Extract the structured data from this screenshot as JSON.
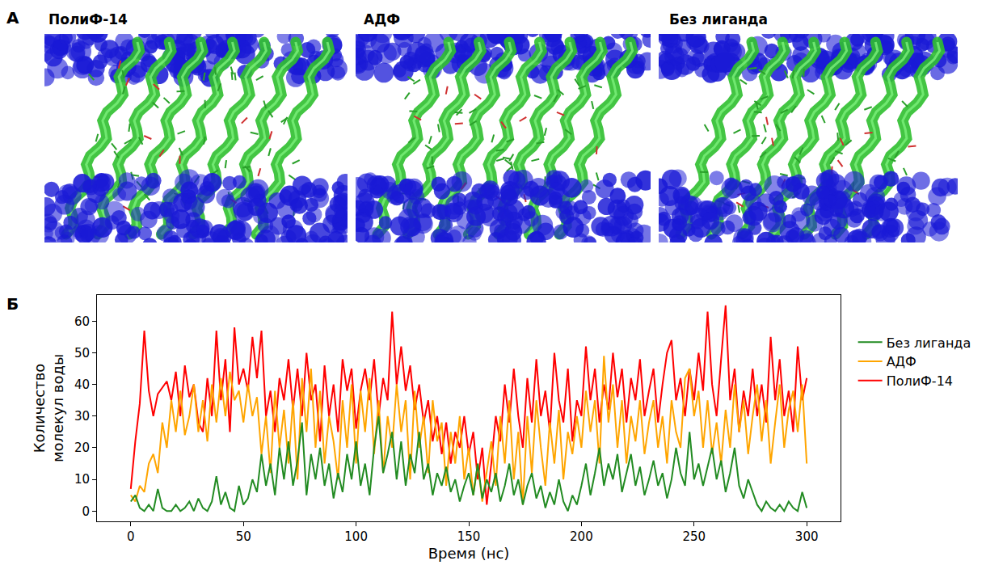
{
  "panel_a": {
    "label": "А",
    "images": [
      "ПолиФ-14",
      "АДФ",
      "Без лиганда"
    ]
  },
  "panel_b": {
    "label": "Б"
  },
  "chart_data": {
    "type": "line",
    "x_label": "Время (нс)",
    "y_label": "Количество молекул воды",
    "xlim": [
      -15,
      315
    ],
    "ylim": [
      -3.25,
      68.25
    ],
    "xticks": [
      0,
      50,
      100,
      150,
      200,
      250,
      300
    ],
    "yticks": [
      0,
      10,
      20,
      30,
      40,
      50,
      60
    ],
    "grid": false,
    "legend": "right",
    "x": [
      0,
      2,
      4,
      6,
      8,
      10,
      12,
      14,
      16,
      18,
      20,
      22,
      24,
      26,
      28,
      30,
      32,
      34,
      36,
      38,
      40,
      42,
      44,
      46,
      48,
      50,
      52,
      54,
      56,
      58,
      60,
      62,
      64,
      66,
      68,
      70,
      72,
      74,
      76,
      78,
      80,
      82,
      84,
      86,
      88,
      90,
      92,
      94,
      96,
      98,
      100,
      102,
      104,
      106,
      108,
      110,
      112,
      114,
      116,
      118,
      120,
      122,
      124,
      126,
      128,
      130,
      132,
      134,
      136,
      138,
      140,
      142,
      144,
      146,
      148,
      150,
      152,
      154,
      156,
      158,
      160,
      162,
      164,
      166,
      168,
      170,
      172,
      174,
      176,
      178,
      180,
      182,
      184,
      186,
      188,
      190,
      192,
      194,
      196,
      198,
      200,
      202,
      204,
      206,
      208,
      210,
      212,
      214,
      216,
      218,
      220,
      222,
      224,
      226,
      228,
      230,
      232,
      234,
      236,
      238,
      240,
      242,
      244,
      246,
      248,
      250,
      252,
      254,
      256,
      258,
      260,
      262,
      264,
      266,
      268,
      270,
      272,
      274,
      276,
      278,
      280,
      282,
      284,
      286,
      288,
      290,
      292,
      294,
      296,
      298,
      300
    ],
    "series": [
      {
        "name": "Без лиганда",
        "color": "#228B22",
        "values": [
          3,
          5,
          1,
          0,
          2,
          0,
          7,
          1,
          0,
          0,
          2,
          0,
          1,
          3,
          0,
          4,
          1,
          0,
          3,
          11,
          2,
          6,
          1,
          0,
          8,
          2,
          4,
          10,
          6,
          18,
          8,
          15,
          5,
          20,
          10,
          22,
          8,
          16,
          28,
          5,
          18,
          10,
          20,
          8,
          15,
          4,
          12,
          6,
          18,
          10,
          22,
          8,
          15,
          5,
          20,
          30,
          12,
          18,
          25,
          10,
          22,
          8,
          18,
          12,
          25,
          10,
          15,
          5,
          12,
          8,
          14,
          6,
          10,
          3,
          8,
          12,
          5,
          15,
          4,
          10,
          6,
          12,
          3,
          8,
          15,
          5,
          10,
          2,
          8,
          12,
          4,
          8,
          1,
          6,
          2,
          10,
          3,
          0,
          5,
          2,
          8,
          15,
          5,
          12,
          20,
          8,
          15,
          10,
          18,
          6,
          12,
          18,
          8,
          14,
          5,
          10,
          16,
          8,
          12,
          4,
          10,
          20,
          12,
          8,
          25,
          10,
          15,
          8,
          14,
          20,
          10,
          16,
          6,
          12,
          20,
          8,
          4,
          10,
          6,
          2,
          0,
          3,
          1,
          0,
          2,
          0,
          3,
          1,
          0,
          6,
          1
        ]
      },
      {
        "name": "АДФ",
        "color": "#FFA500",
        "values": [
          5,
          3,
          8,
          6,
          15,
          18,
          12,
          28,
          20,
          35,
          25,
          38,
          24,
          30,
          40,
          25,
          35,
          22,
          40,
          28,
          42,
          30,
          44,
          35,
          38,
          28,
          40,
          30,
          36,
          18,
          30,
          12,
          38,
          20,
          32,
          15,
          35,
          10,
          42,
          25,
          45,
          20,
          38,
          15,
          30,
          22,
          10,
          35,
          20,
          40,
          15,
          38,
          25,
          42,
          18,
          35,
          12,
          30,
          20,
          40,
          25,
          35,
          10,
          38,
          20,
          30,
          12,
          35,
          22,
          28,
          8,
          25,
          15,
          30,
          10,
          20,
          5,
          15,
          3,
          12,
          22,
          8,
          30,
          15,
          35,
          10,
          25,
          2,
          30,
          12,
          35,
          20,
          8,
          28,
          15,
          32,
          10,
          25,
          18,
          30,
          20,
          38,
          25,
          35,
          15,
          49,
          28,
          40,
          20,
          35,
          15,
          30,
          22,
          35,
          18,
          28,
          35,
          20,
          30,
          15,
          35,
          25,
          20,
          42,
          45,
          30,
          38,
          20,
          35,
          18,
          28,
          15,
          32,
          20,
          40,
          25,
          35,
          18,
          30,
          40,
          22,
          35,
          15,
          28,
          40,
          20,
          32,
          38,
          25,
          40,
          15
        ]
      },
      {
        "name": "ПолиФ-14",
        "color": "#FF0000",
        "values": [
          7,
          22,
          34,
          57,
          38,
          30,
          37,
          39,
          41,
          35,
          44,
          30,
          46,
          36,
          40,
          28,
          25,
          42,
          30,
          57,
          35,
          48,
          25,
          58,
          40,
          45,
          38,
          55,
          42,
          57,
          30,
          38,
          25,
          42,
          35,
          48,
          32,
          45,
          30,
          50,
          35,
          40,
          22,
          46,
          30,
          40,
          25,
          48,
          38,
          45,
          26,
          38,
          45,
          35,
          48,
          30,
          42,
          35,
          63,
          40,
          52,
          38,
          46,
          32,
          40,
          28,
          35,
          22,
          30,
          18,
          28,
          15,
          25,
          20,
          30,
          18,
          25,
          10,
          20,
          2,
          15,
          30,
          22,
          40,
          28,
          45,
          30,
          20,
          42,
          28,
          48,
          30,
          38,
          25,
          50,
          35,
          28,
          45,
          22,
          35,
          30,
          52,
          35,
          45,
          28,
          40,
          32,
          50,
          36,
          45,
          28,
          42,
          35,
          48,
          30,
          38,
          45,
          28,
          40,
          50,
          54,
          35,
          42,
          30,
          45,
          35,
          50,
          38,
          63,
          40,
          30,
          48,
          65,
          35,
          45,
          25,
          38,
          30,
          45,
          30,
          40,
          28,
          55,
          35,
          48,
          30,
          38,
          25,
          52,
          35,
          42
        ]
      }
    ]
  }
}
